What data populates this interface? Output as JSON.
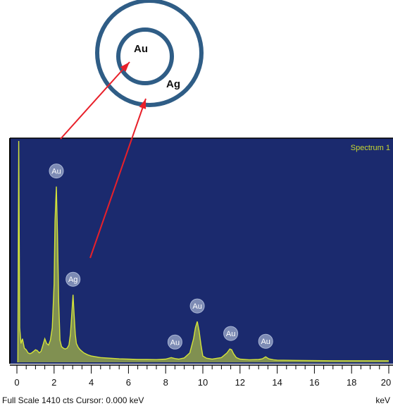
{
  "diagram": {
    "inner_label": "Au",
    "outer_label": "Ag",
    "ring_color": "#2f5d86",
    "arrow_color": "#e8202a"
  },
  "chart_data": {
    "type": "line",
    "title": "Spectrum 1",
    "xlabel": "keV",
    "xlim": [
      0,
      20
    ],
    "x_ticks": [
      0,
      2,
      4,
      6,
      8,
      10,
      12,
      14,
      16,
      18,
      20
    ],
    "ylim": [
      0,
      1410
    ],
    "grid": false,
    "background_color": "#1b2a6e",
    "series": [
      {
        "color": "#d4e43a",
        "x": [
          0.05,
          0.1,
          0.15,
          0.22,
          0.3,
          0.4,
          0.5,
          0.6,
          0.7,
          0.8,
          0.9,
          1.0,
          1.1,
          1.2,
          1.3,
          1.4,
          1.5,
          1.6,
          1.7,
          1.8,
          1.9,
          2.0,
          2.05,
          2.12,
          2.18,
          2.25,
          2.32,
          2.4,
          2.5,
          2.6,
          2.7,
          2.8,
          2.88,
          2.96,
          3.02,
          3.08,
          3.14,
          3.2,
          3.3,
          3.4,
          3.6,
          3.8,
          4.0,
          4.5,
          5.0,
          5.5,
          6.0,
          6.5,
          7.0,
          7.5,
          8.0,
          8.3,
          8.5,
          8.7,
          9.0,
          9.3,
          9.5,
          9.6,
          9.7,
          9.8,
          9.9,
          10.0,
          10.2,
          10.5,
          11.0,
          11.3,
          11.45,
          11.55,
          11.65,
          11.8,
          12.0,
          12.5,
          13.0,
          13.2,
          13.38,
          13.55,
          13.8,
          14.0,
          15.0,
          16.0,
          17.0,
          18.0,
          19.0,
          20.0
        ],
        "y": [
          0,
          1410,
          220,
          120,
          150,
          90,
          80,
          60,
          55,
          60,
          70,
          80,
          75,
          60,
          70,
          110,
          150,
          120,
          110,
          140,
          220,
          500,
          900,
          1120,
          820,
          380,
          140,
          100,
          90,
          85,
          90,
          110,
          180,
          320,
          430,
          300,
          180,
          120,
          95,
          80,
          60,
          48,
          40,
          30,
          26,
          22,
          20,
          18,
          18,
          17,
          20,
          30,
          24,
          20,
          28,
          60,
          150,
          220,
          260,
          200,
          110,
          40,
          26,
          20,
          30,
          60,
          85,
          80,
          55,
          30,
          20,
          16,
          18,
          22,
          35,
          22,
          16,
          14,
          12,
          11,
          10,
          10,
          10,
          10
        ]
      }
    ],
    "annotations": [
      {
        "text": "Au",
        "x": 2.12,
        "y": 1120
      },
      {
        "text": "Ag",
        "x": 3.02,
        "y": 430
      },
      {
        "text": "Au",
        "x": 8.5,
        "y": 30
      },
      {
        "text": "Au",
        "x": 9.7,
        "y": 260
      },
      {
        "text": "Au",
        "x": 11.5,
        "y": 85
      },
      {
        "text": "Au",
        "x": 13.38,
        "y": 35
      }
    ],
    "footer_text": "Full Scale 1410 cts  Cursor: 0.000 keV"
  }
}
